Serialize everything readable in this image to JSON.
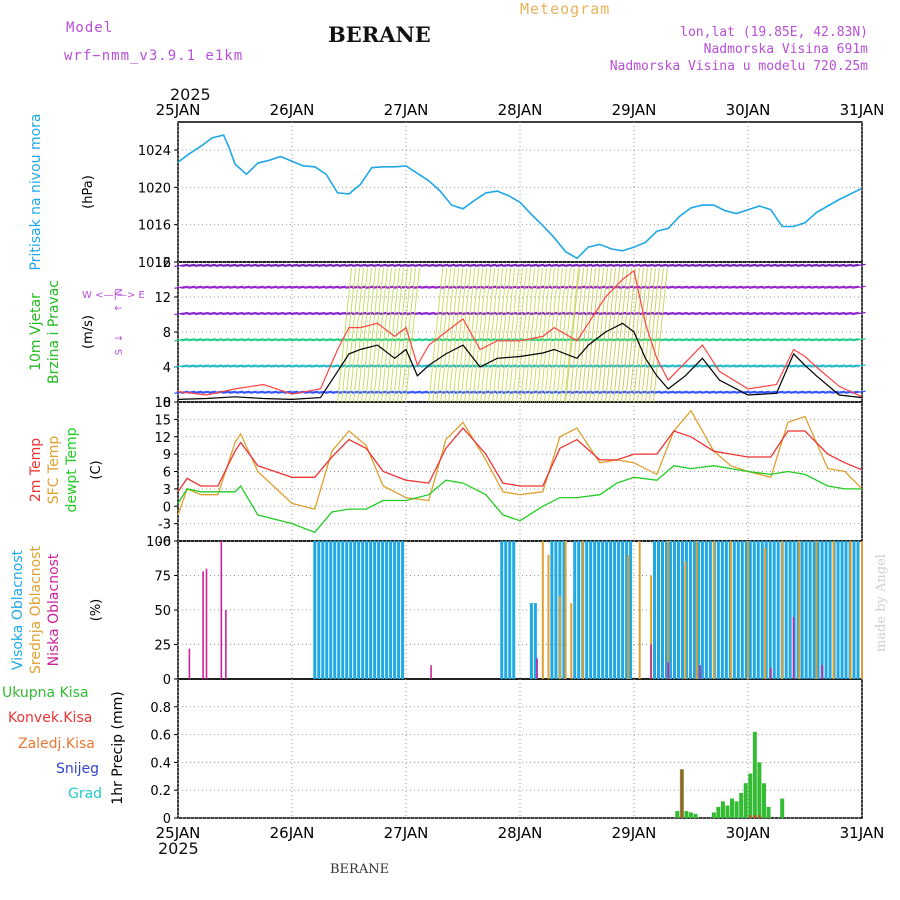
{
  "header": {
    "model_label": "Model",
    "model_version": "wrf−nmm_v3.9.1  e1km",
    "station": "BERANE",
    "meteogram": "Meteogram",
    "coords": "lon,lat (19.85E, 42.83N)",
    "elevation": "Nadmorska Visina 691m",
    "model_elevation": "Nadmorska Visina u modelu 720.25m",
    "year_top": "2025",
    "year_bottom": "2025"
  },
  "footer": {
    "station": "BERANE",
    "credit": "made by Angel"
  },
  "x_axis": {
    "ticks": [
      "25JAN",
      "26JAN",
      "27JAN",
      "28JAN",
      "29JAN",
      "30JAN",
      "31JAN"
    ],
    "range_days": [
      0,
      6
    ]
  },
  "colors": {
    "pressure": "#1fa8e6",
    "wind_mean": "#000000",
    "wind_gust": "#ff4444",
    "t2m": "#ee3333",
    "sfc": "#e0a030",
    "dewpt": "#22cc22",
    "cloud_high": "#1fa8e6",
    "cloud_mid": "#e0a030",
    "cloud_low": "#cc2299",
    "precip_total": "#33bb33",
    "precip_conv": "#ee3333"
  },
  "chart_data": [
    {
      "type": "line",
      "id": "pressure",
      "label_lines": [
        "Pritisak na nivou mora",
        "(hPa)"
      ],
      "ylim": [
        1012,
        1027
      ],
      "yticks": [
        "1012",
        "1016",
        "1020",
        "1024"
      ],
      "grid": true,
      "x": [
        0,
        0.1,
        0.2,
        0.3,
        0.4,
        0.45,
        0.5,
        0.6,
        0.7,
        0.8,
        0.9,
        1.0,
        1.1,
        1.2,
        1.3,
        1.4,
        1.5,
        1.6,
        1.7,
        1.8,
        1.9,
        2.0,
        2.1,
        2.2,
        2.3,
        2.4,
        2.5,
        2.6,
        2.7,
        2.8,
        2.9,
        3.0,
        3.1,
        3.2,
        3.3,
        3.4,
        3.5,
        3.6,
        3.7,
        3.8,
        3.9,
        4.0,
        4.1,
        4.2,
        4.3,
        4.4,
        4.5,
        4.6,
        4.7,
        4.8,
        4.9,
        5.0,
        5.1,
        5.2,
        5.3,
        5.4,
        5.5,
        5.6,
        5.7,
        5.8,
        5.9,
        6.0
      ],
      "series": [
        {
          "values": [
            1022.7,
            1023.6,
            1024.4,
            1025.3,
            1025.6,
            1024.2,
            1022.5,
            1021.4,
            1022.6,
            1022.9,
            1023.3,
            1022.8,
            1022.3,
            1022.2,
            1021.4,
            1019.4,
            1019.3,
            1020.3,
            1022.1,
            1022.2,
            1022.2,
            1022.3,
            1021.5,
            1020.7,
            1019.6,
            1018.1,
            1017.7,
            1018.6,
            1019.4,
            1019.6,
            1019.1,
            1018.4,
            1017.1,
            1015.9,
            1014.6,
            1013.1,
            1012.4,
            1013.6,
            1013.9,
            1013.4,
            1013.2,
            1013.6,
            1014.1,
            1015.3,
            1015.6,
            1016.9,
            1017.8,
            1018.1,
            1018.1,
            1017.5,
            1017.2,
            1017.6,
            1018.0,
            1017.6,
            1015.8,
            1015.8,
            1016.2,
            1017.3,
            1018.0,
            1018.7,
            1019.3,
            1019.9
          ]
        }
      ]
    },
    {
      "type": "line",
      "id": "wind",
      "label_lines": [
        "10m Vjetar",
        "Brzina i Pravac",
        "(m/s)"
      ],
      "compass": [
        "N",
        "↑",
        "W <—|—> E",
        "↓",
        "S"
      ],
      "ylim": [
        0,
        16
      ],
      "yticks": [
        "0",
        "4",
        "8",
        "12",
        "16"
      ],
      "grid": true,
      "x": [
        0,
        0.25,
        0.5,
        0.75,
        1.0,
        1.25,
        1.4,
        1.5,
        1.6,
        1.75,
        1.9,
        2.0,
        2.1,
        2.2,
        2.35,
        2.5,
        2.65,
        2.8,
        3.0,
        3.2,
        3.3,
        3.5,
        3.6,
        3.75,
        3.9,
        4.0,
        4.1,
        4.2,
        4.3,
        4.45,
        4.6,
        4.75,
        5.0,
        5.25,
        5.4,
        5.5,
        5.6,
        5.8,
        6.0
      ],
      "series": [
        {
          "name": "mean",
          "values": [
            0.3,
            0.4,
            0.6,
            0.4,
            0.3,
            0.5,
            3.5,
            5.5,
            6.0,
            6.5,
            5.0,
            6.0,
            3.0,
            4.2,
            5.5,
            6.5,
            4.0,
            5.0,
            5.2,
            5.6,
            6.0,
            5.0,
            6.5,
            8.0,
            9.0,
            8.0,
            5.0,
            3.0,
            1.5,
            3.0,
            5.0,
            2.5,
            0.8,
            1.0,
            5.5,
            4.2,
            3.0,
            0.8,
            0.5
          ]
        },
        {
          "name": "gust",
          "values": [
            1.2,
            0.8,
            1.5,
            2.0,
            0.9,
            1.5,
            6.0,
            8.5,
            8.5,
            9.0,
            7.5,
            8.5,
            4.2,
            6.5,
            8.0,
            9.5,
            6.0,
            7.0,
            7.0,
            7.5,
            8.5,
            7.0,
            9.0,
            12.0,
            14.0,
            15.0,
            9.0,
            5.0,
            2.5,
            4.5,
            6.5,
            3.5,
            1.5,
            2.0,
            6.0,
            5.2,
            4.0,
            1.8,
            0.6
          ]
        }
      ],
      "barb_rows": [
        1,
        4,
        7,
        10,
        13,
        15.5
      ]
    },
    {
      "type": "line",
      "id": "temperature",
      "label_lines": [
        "2m Temp",
        "SFC Temp",
        "dewpt Temp",
        "(C)"
      ],
      "ylim": [
        -6,
        18
      ],
      "yticks": [
        "-6",
        "-3",
        "0",
        "3",
        "6",
        "9",
        "12",
        "15",
        "18"
      ],
      "grid": true,
      "x": [
        0,
        0.08,
        0.2,
        0.35,
        0.5,
        0.55,
        0.7,
        1.0,
        1.2,
        1.35,
        1.5,
        1.65,
        1.8,
        2.0,
        2.2,
        2.35,
        2.5,
        2.7,
        2.85,
        3.0,
        3.2,
        3.35,
        3.5,
        3.7,
        3.85,
        4.0,
        4.2,
        4.35,
        4.5,
        4.7,
        4.85,
        5.0,
        5.2,
        5.35,
        5.5,
        5.7,
        5.85,
        6.0
      ],
      "series": [
        {
          "name": "t2m",
          "values": [
            2.5,
            4.8,
            3.5,
            3.5,
            9.5,
            11.0,
            7.0,
            5.0,
            5.0,
            8.5,
            11.5,
            10.0,
            6.0,
            4.5,
            4.0,
            10.0,
            13.5,
            9.0,
            4.0,
            3.5,
            3.5,
            10.0,
            11.5,
            8.0,
            8.0,
            9.0,
            9.0,
            13.0,
            12.0,
            9.5,
            9.0,
            8.5,
            8.5,
            13.0,
            13.0,
            9.0,
            7.5,
            6.3
          ]
        },
        {
          "name": "sfc",
          "values": [
            -1.5,
            3.0,
            2.0,
            2.0,
            11.0,
            12.5,
            6.0,
            0.5,
            -0.5,
            9.5,
            13.0,
            10.5,
            3.5,
            1.5,
            1.0,
            11.5,
            14.5,
            8.0,
            2.5,
            2.0,
            2.5,
            12.0,
            13.5,
            7.5,
            8.0,
            7.5,
            5.5,
            13.0,
            16.5,
            9.5,
            7.0,
            6.0,
            5.0,
            14.5,
            15.5,
            6.5,
            6.0,
            3.0
          ]
        },
        {
          "name": "dewpt",
          "values": [
            0.5,
            3.0,
            2.5,
            2.5,
            2.5,
            3.5,
            -1.5,
            -3.0,
            -4.5,
            -1.0,
            -0.5,
            -0.5,
            1.0,
            1.0,
            2.0,
            4.5,
            4.0,
            2.0,
            -1.5,
            -2.5,
            0.0,
            1.5,
            1.5,
            2.0,
            4.0,
            5.0,
            4.5,
            7.0,
            6.5,
            7.0,
            6.5,
            6.0,
            5.5,
            6.0,
            5.5,
            3.5,
            3.0,
            3.0
          ]
        }
      ]
    },
    {
      "type": "bar",
      "id": "clouds",
      "label_lines": [
        "Visoka Oblacnost",
        "Srednja Oblacnost",
        "Niska Oblacnost",
        "(%)"
      ],
      "ylim": [
        0,
        100
      ],
      "yticks": [
        "0",
        "25",
        "50",
        "75",
        "100"
      ],
      "grid": true,
      "high_runs": [
        [
          1.2,
          2.0,
          100
        ],
        [
          2.84,
          2.96,
          100
        ],
        [
          3.1,
          3.16,
          55
        ],
        [
          3.28,
          3.42,
          100
        ],
        [
          3.48,
          4.0,
          100
        ],
        [
          4.18,
          6.0,
          100
        ]
      ],
      "mid_bars": [
        [
          3.2,
          100
        ],
        [
          3.25,
          90
        ],
        [
          3.35,
          60
        ],
        [
          3.4,
          100
        ],
        [
          3.45,
          55
        ],
        [
          3.55,
          100
        ],
        [
          3.95,
          90
        ],
        [
          4.05,
          100
        ],
        [
          4.15,
          75
        ],
        [
          4.3,
          100
        ],
        [
          4.45,
          85
        ],
        [
          4.55,
          100
        ],
        [
          4.7,
          100
        ],
        [
          4.85,
          100
        ],
        [
          5.0,
          100
        ],
        [
          5.15,
          95
        ],
        [
          5.3,
          100
        ],
        [
          5.45,
          100
        ],
        [
          5.6,
          100
        ],
        [
          5.75,
          100
        ],
        [
          5.9,
          100
        ],
        [
          6.0,
          100
        ]
      ],
      "low_bars": [
        [
          0.1,
          22
        ],
        [
          0.22,
          78
        ],
        [
          0.25,
          80
        ],
        [
          0.38,
          100
        ],
        [
          0.42,
          50
        ],
        [
          2.22,
          10
        ],
        [
          3.15,
          15
        ],
        [
          4.15,
          25
        ],
        [
          4.3,
          12
        ],
        [
          4.58,
          10
        ],
        [
          5.2,
          8
        ],
        [
          5.4,
          45
        ],
        [
          5.65,
          10
        ]
      ]
    },
    {
      "type": "bar",
      "id": "precip",
      "label_lines": [
        "1hr Precip (mm)"
      ],
      "legend": [
        "Ukupna Kisa",
        "Konvek.Kisa",
        "Zaledj.Kisa",
        "Snijeg",
        "Grad"
      ],
      "ylim": [
        0,
        1.0
      ],
      "yticks": [
        "0",
        "0.2",
        "0.4",
        "0.6",
        "0.8"
      ],
      "grid": true,
      "x": [
        4.38,
        4.42,
        4.46,
        4.5,
        4.54,
        4.7,
        4.74,
        4.78,
        4.82,
        4.86,
        4.9,
        4.94,
        4.98,
        5.02,
        5.06,
        5.1,
        5.14,
        5.18,
        5.3
      ],
      "values": [
        0.05,
        0.35,
        0.05,
        0.04,
        0.03,
        0.04,
        0.08,
        0.12,
        0.09,
        0.14,
        0.12,
        0.18,
        0.25,
        0.32,
        0.62,
        0.4,
        0.25,
        0.08,
        0.14
      ],
      "convective": [
        0.0,
        0.35,
        0.0,
        0.0,
        0.0,
        0.0,
        0.0,
        0.0,
        0.0,
        0.0,
        0.0,
        0.0,
        0.0,
        0.02,
        0.02,
        0.02,
        0.0,
        0.0,
        0.0
      ]
    }
  ]
}
